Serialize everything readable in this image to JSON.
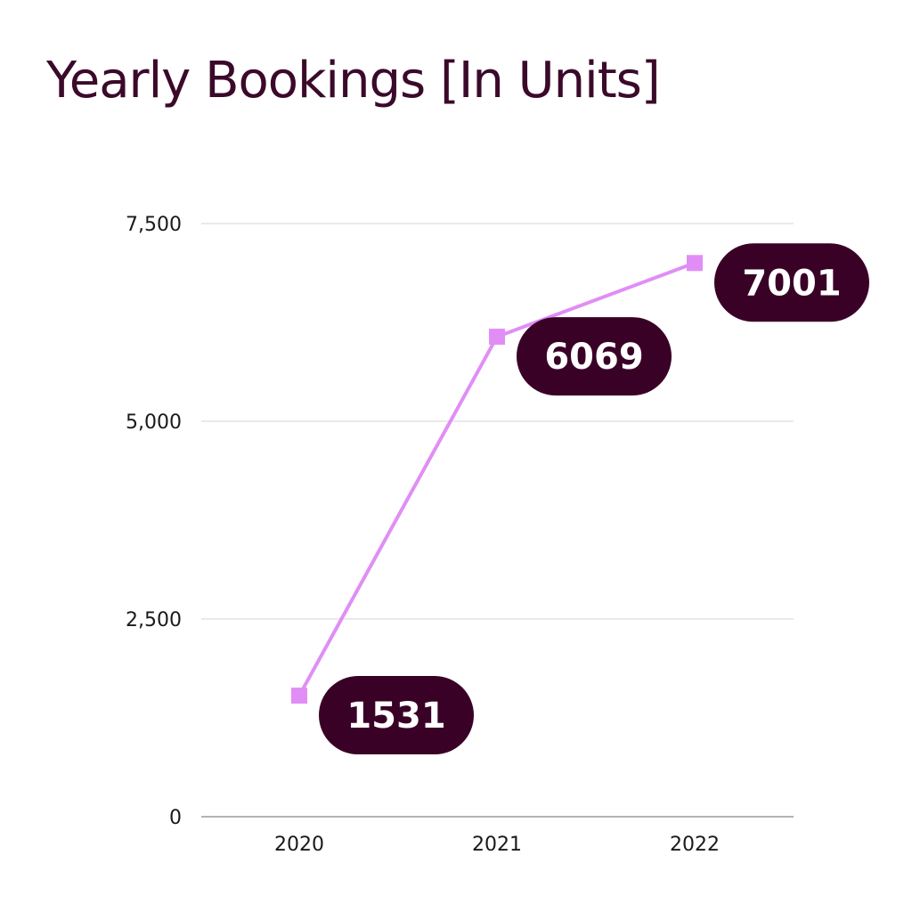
{
  "chart_data": {
    "type": "line",
    "title": "Yearly Bookings [In Units]",
    "xlabel": "",
    "ylabel": "",
    "categories": [
      "2020",
      "2021",
      "2022"
    ],
    "series": [
      {
        "values": [
          1531,
          6069,
          7001
        ]
      }
    ],
    "data_labels": [
      "1531",
      "6069",
      "7001"
    ],
    "ylim": [
      0,
      7500
    ],
    "yticks": [
      0,
      2500,
      5000,
      7500
    ],
    "ytick_labels": [
      "0",
      "2,500",
      "5,000",
      "7,500"
    ],
    "grid": true,
    "legend": "none",
    "marker": "square"
  },
  "colors": {
    "title": "#3b0a2a",
    "line": "#e08ef5",
    "label_bg": "#3a0127",
    "label_text": "#ffffff",
    "grid": "#d6d6d6",
    "axis": "#9a9a9a",
    "tick_text": "#1a1a1a"
  }
}
